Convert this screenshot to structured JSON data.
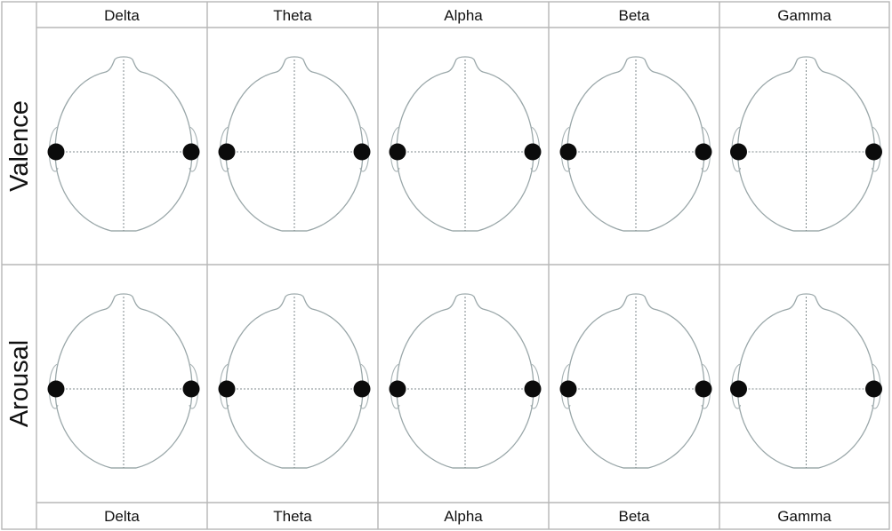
{
  "figure": {
    "rows": [
      {
        "label": "Valence",
        "label_top_y": 0
      },
      {
        "label": "Arousal"
      }
    ],
    "bands": [
      "Delta",
      "Theta",
      "Alpha",
      "Beta",
      "Gamma"
    ],
    "top_header_labels": [
      "Delta",
      "Theta",
      "Alpha",
      "Beta",
      "Gamma"
    ],
    "bottom_header_labels": [
      "Delta",
      "Theta",
      "Alpha",
      "Beta",
      "Gamma"
    ],
    "electrodes_per_map": [
      "left-temporal",
      "right-temporal"
    ],
    "colors": {
      "frame": "#b7b7b7",
      "head_outline": "#9aa7a9",
      "electrode": "#0b0b0b",
      "text": "#111111"
    }
  }
}
